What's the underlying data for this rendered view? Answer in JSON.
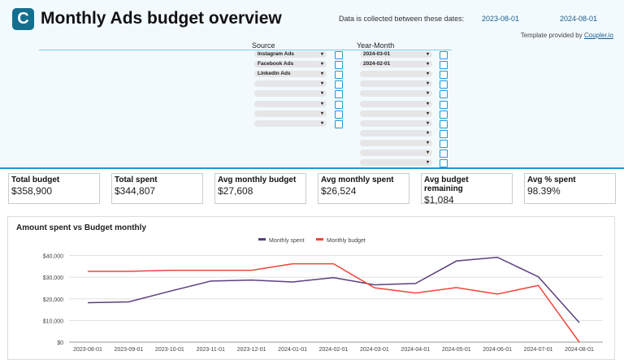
{
  "header": {
    "logo": "C",
    "title": "Monthly Ads budget overview",
    "dates_label": "Data is collected between these dates:",
    "start_date": "2023-08-01",
    "end_date": "2024-08-01",
    "template_prefix": "Template provided by ",
    "template_link": "Coupler.io"
  },
  "filters": {
    "source": {
      "label": "Source",
      "values": [
        "Instagram Ads",
        "Facebook Ads",
        "Linkedin Ads",
        "",
        "",
        "",
        "",
        ""
      ]
    },
    "year_month": {
      "label": "Year-Month",
      "values": [
        "2024-03-01",
        "2024-02-01",
        "",
        "",
        "",
        "",
        "",
        "",
        "",
        "",
        "",
        ""
      ]
    }
  },
  "kpis": [
    {
      "label": "Total budget",
      "value": "$358,900"
    },
    {
      "label": "Total spent",
      "value": "$344,807"
    },
    {
      "label": "Avg monthly budget",
      "value": "$27,608"
    },
    {
      "label": "Avg monthly spent",
      "value": "$26,524"
    },
    {
      "label": "Avg budget remaining",
      "value": "$1,084"
    },
    {
      "label": "Avg % spent",
      "value": "98.39%"
    }
  ],
  "chart_data": {
    "type": "line",
    "title": "Amount spent vs Budget monthly",
    "legend": "top",
    "categories": [
      "2023-08-01",
      "2023-09-01",
      "2023-10-01",
      "2023-11-01",
      "2023-12-01",
      "2024-01-01",
      "2024-02-01",
      "2024-03-01",
      "2024-04-01",
      "2024-05-01",
      "2024-06-01",
      "2024-07-01",
      "2024-08-01"
    ],
    "yticks": [
      "$0",
      "$10,000",
      "$20,000",
      "$30,000",
      "$40,000"
    ],
    "ylim": [
      0,
      40000
    ],
    "grid": true,
    "series": [
      {
        "name": "Monthly spent",
        "color": "#5b3f7f",
        "values": [
          18200,
          18600,
          23500,
          28200,
          28700,
          27800,
          29800,
          26500,
          27100,
          37500,
          39200,
          30200,
          9000
        ]
      },
      {
        "name": "Monthly budget",
        "color": "#f0443a",
        "values": [
          32700,
          32700,
          33200,
          33200,
          33200,
          36200,
          36200,
          25100,
          22700,
          25200,
          22200,
          26200,
          0
        ]
      }
    ]
  }
}
